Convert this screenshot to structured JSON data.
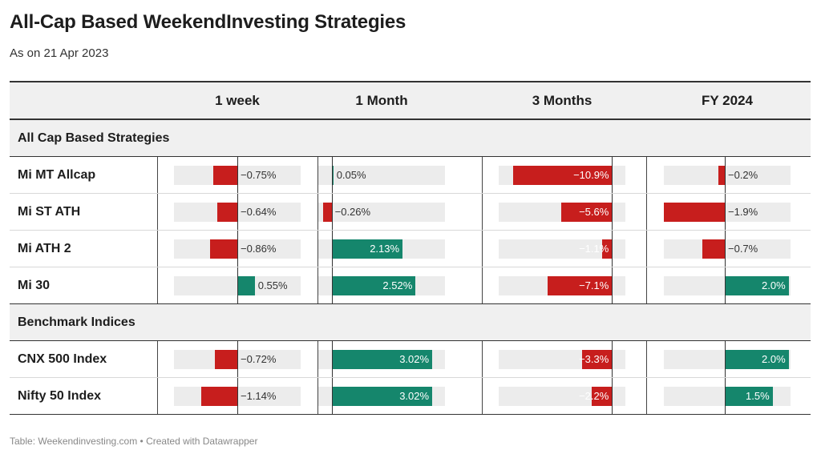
{
  "title": "All-Cap Based WeekendInvesting Strategies",
  "subtitle": "As on 21 Apr 2023",
  "footer": "Table: Weekendinvesting.com • Created with Datawrapper",
  "chart_data": {
    "type": "table",
    "columns": [
      "1 week",
      "1 Month",
      "3 Months",
      "FY 2024"
    ],
    "groups": [
      {
        "name": "All Cap Based Strategies",
        "rows": [
          {
            "label": "Mi MT Allcap",
            "values": [
              -0.75,
              0.05,
              -10.9,
              -0.2
            ],
            "display": [
              "−0.75%",
              "0.05%",
              "−10.9%",
              "−0.2%"
            ]
          },
          {
            "label": "Mi ST ATH",
            "values": [
              -0.64,
              -0.26,
              -5.6,
              -1.9
            ],
            "display": [
              "−0.64%",
              "−0.26%",
              "−5.6%",
              "−1.9%"
            ]
          },
          {
            "label": "Mi ATH 2",
            "values": [
              -0.86,
              2.13,
              -1.1,
              -0.7
            ],
            "display": [
              "−0.86%",
              "2.13%",
              "−1.1%",
              "−0.7%"
            ]
          },
          {
            "label": "Mi 30",
            "values": [
              0.55,
              2.52,
              -7.1,
              2.0
            ],
            "display": [
              "0.55%",
              "2.52%",
              "−7.1%",
              "2.0%"
            ]
          }
        ]
      },
      {
        "name": "Benchmark Indices",
        "rows": [
          {
            "label": "CNX 500 Index",
            "values": [
              -0.72,
              3.02,
              -3.3,
              2.0
            ],
            "display": [
              "−0.72%",
              "3.02%",
              "−3.3%",
              "2.0%"
            ]
          },
          {
            "label": "Nifty 50 Index",
            "values": [
              -1.14,
              3.02,
              -2.2,
              1.5
            ],
            "display": [
              "−1.14%",
              "3.02%",
              "−2.2%",
              "1.5%"
            ]
          }
        ]
      }
    ],
    "column_ranges": [
      [
        -2.0,
        2.0
      ],
      [
        -0.4,
        3.4
      ],
      [
        -12.5,
        1.5
      ],
      [
        -1.9,
        2.05
      ]
    ],
    "colors": {
      "negative": "#c71e1d",
      "positive": "#15866c",
      "track": "#ececec"
    }
  }
}
